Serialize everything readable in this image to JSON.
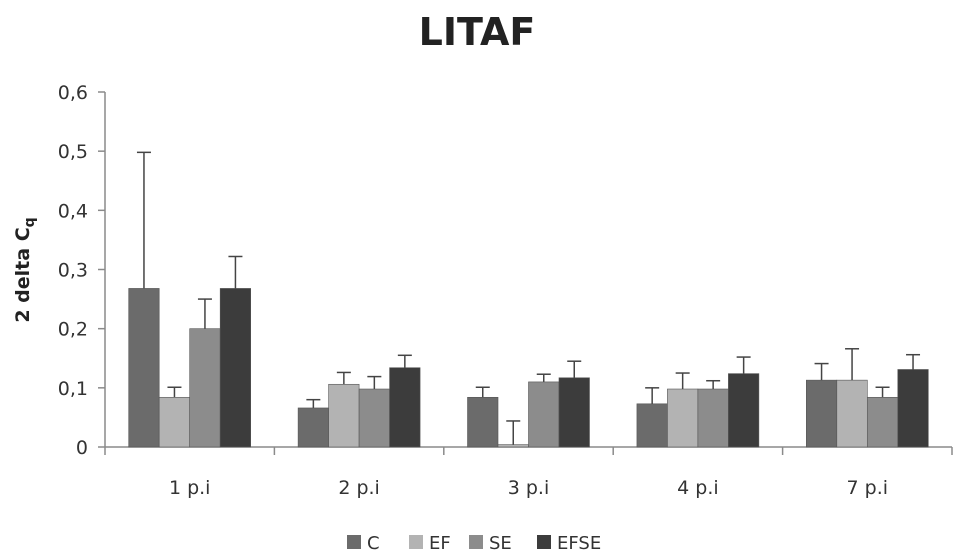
{
  "chart_data": {
    "type": "bar",
    "title": "LITAF",
    "ylabel": "2 delta C",
    "ylabel_subscript": "q",
    "xlabel": "",
    "categories": [
      "1 p.i",
      "2 p.i",
      "3 p.i",
      "4 p.i",
      "7 p.i"
    ],
    "ylim": [
      0,
      0.6
    ],
    "yticks": [
      0,
      0.1,
      0.2,
      0.3,
      0.4,
      0.5,
      0.6
    ],
    "ytick_labels": [
      "0",
      "0,1",
      "0,2",
      "0,3",
      "0,4",
      "0,5",
      "0,6"
    ],
    "grid": false,
    "legend_position": "bottom",
    "series": [
      {
        "name": "C",
        "color": "#6b6b6b",
        "values": [
          0.268,
          0.066,
          0.084,
          0.073,
          0.113
        ],
        "errors": [
          0.23,
          0.014,
          0.017,
          0.027,
          0.028
        ]
      },
      {
        "name": "EF",
        "color": "#b3b3b3",
        "values": [
          0.084,
          0.106,
          0.004,
          0.098,
          0.113
        ],
        "errors": [
          0.017,
          0.02,
          0.04,
          0.027,
          0.053
        ]
      },
      {
        "name": "SE",
        "color": "#8c8c8c",
        "values": [
          0.2,
          0.098,
          0.11,
          0.098,
          0.084
        ],
        "errors": [
          0.05,
          0.021,
          0.013,
          0.014,
          0.017
        ]
      },
      {
        "name": "EFSE",
        "color": "#3c3c3c",
        "values": [
          0.268,
          0.134,
          0.117,
          0.124,
          0.131
        ],
        "errors": [
          0.054,
          0.021,
          0.028,
          0.028,
          0.025
        ]
      }
    ]
  }
}
